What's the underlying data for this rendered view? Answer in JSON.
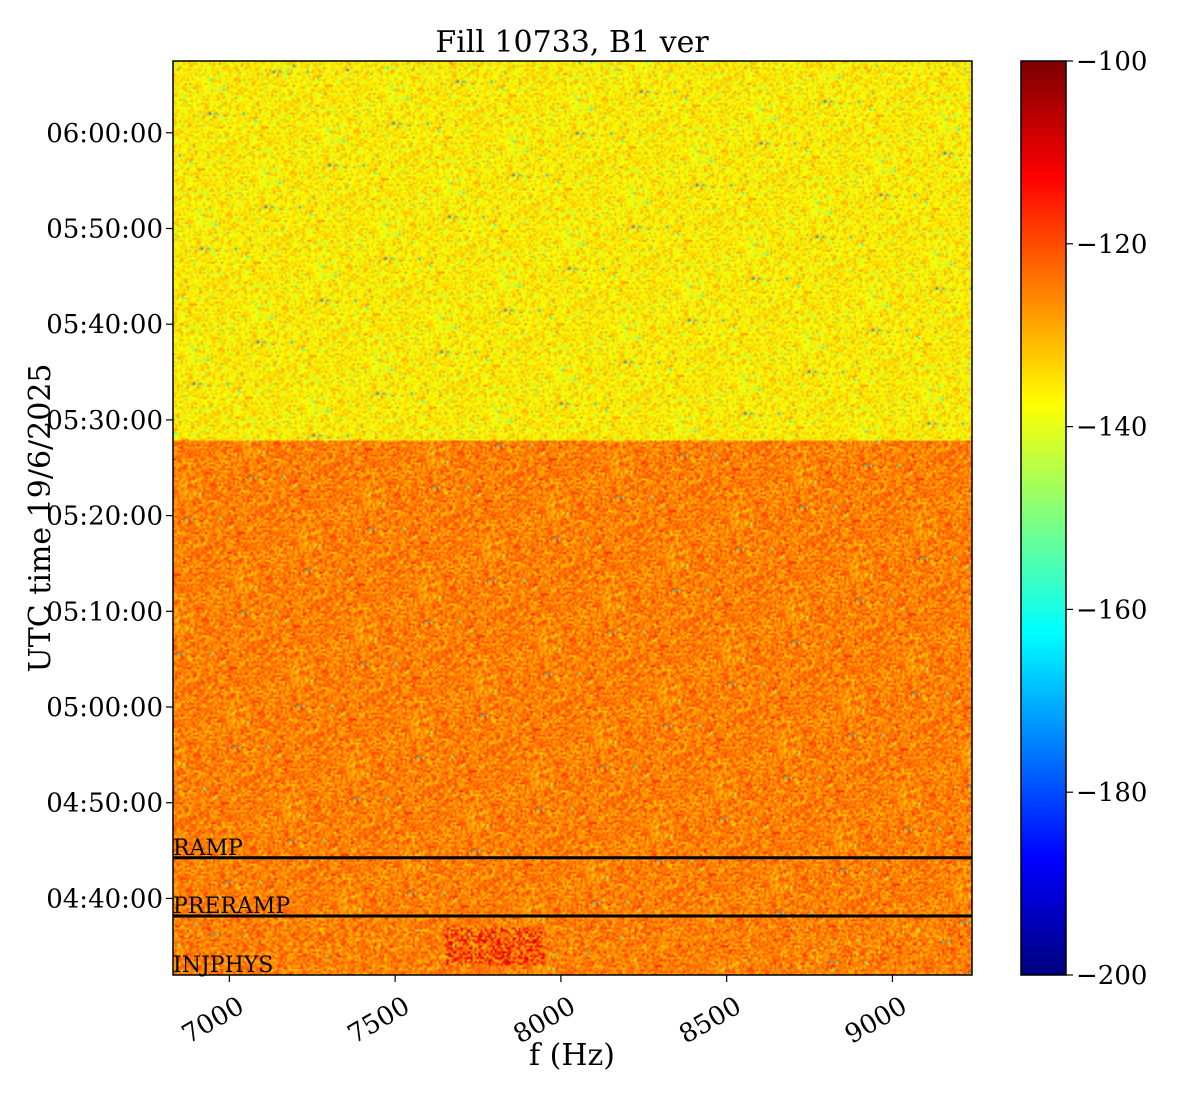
{
  "chart_data": {
    "type": "heatmap",
    "title": "Fill 10733, B1 ver",
    "xlabel": "f (Hz)",
    "ylabel": "UTC time 19/6/2025",
    "xlim": [
      6830,
      9240
    ],
    "x_ticks": [
      7000,
      7500,
      8000,
      8500,
      9000
    ],
    "x_tick_labels": [
      "7000",
      "7500",
      "8000",
      "8500",
      "9000"
    ],
    "ylim": [
      "04:32:00",
      "06:07:30"
    ],
    "y_ticks": [
      "04:40:00",
      "04:50:00",
      "05:00:00",
      "05:10:00",
      "05:20:00",
      "05:30:00",
      "05:40:00",
      "05:50:00",
      "06:00:00"
    ],
    "colorbar": {
      "colormap": "jet",
      "min": -200,
      "max": -100,
      "ticks": [
        -200,
        -180,
        -160,
        -140,
        -120,
        -100
      ],
      "tick_labels": [
        "−200",
        "−180",
        "−160",
        "−140",
        "−120",
        "−100"
      ]
    },
    "regions": [
      {
        "t_start": "04:32:00",
        "t_end": "05:27:50",
        "mean_level": -125,
        "spread": 4
      },
      {
        "t_start": "05:27:50",
        "t_end": "06:07:30",
        "mean_level": -136,
        "spread": 4
      }
    ],
    "hotspot": {
      "f_start": 7650,
      "f_end": 7950,
      "t_start": "04:33:00",
      "t_end": "04:37:00",
      "level": -112
    },
    "phase_markers": [
      {
        "label": "RAMP",
        "time": "04:44:15"
      },
      {
        "label": "PRERAMP",
        "time": "04:38:10"
      },
      {
        "label": "INJPHYS",
        "time": "04:32:00"
      }
    ],
    "phase_line_color": "#000000"
  }
}
